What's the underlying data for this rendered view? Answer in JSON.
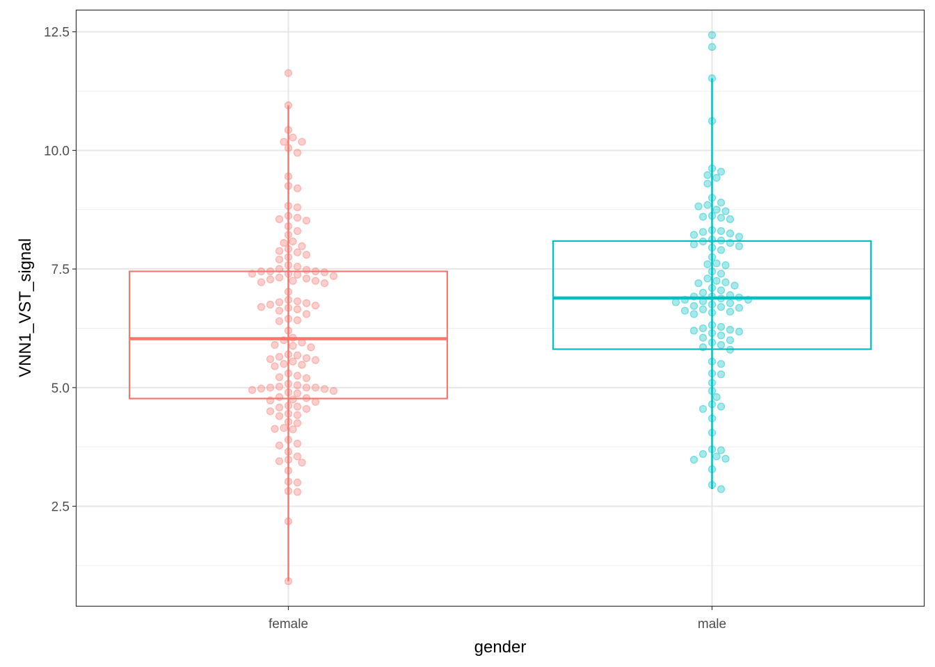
{
  "chart_data": {
    "type": "box",
    "xlabel": "gender",
    "ylabel": "VNN1_VST_signal",
    "categories": [
      "female",
      "male"
    ],
    "ylim": [
      0.4,
      12.95
    ],
    "yticks": [
      2.5,
      5.0,
      7.5,
      10.0,
      12.5
    ],
    "ytick_labels": [
      "2.5",
      "5.0",
      "7.5",
      "10.0",
      "12.5"
    ],
    "grid": true,
    "legend": "none",
    "colors": {
      "female": "#F8766D",
      "male": "#00BFC4"
    },
    "series": [
      {
        "category": "female",
        "box": {
          "lower_whisker": 0.92,
          "q1": 4.77,
          "median": 6.03,
          "q3": 7.45,
          "upper_whisker": 10.95
        },
        "points": [
          11.63,
          10.95,
          10.43,
          10.27,
          10.18,
          10.18,
          10.05,
          9.95,
          9.45,
          9.25,
          9.2,
          8.83,
          8.8,
          8.62,
          8.58,
          8.55,
          8.52,
          8.4,
          8.3,
          8.22,
          8.08,
          8.05,
          7.98,
          7.92,
          7.88,
          7.85,
          7.8,
          7.75,
          7.7,
          7.58,
          7.55,
          7.5,
          7.48,
          7.45,
          7.45,
          7.45,
          7.43,
          7.4,
          7.4,
          7.38,
          7.35,
          7.32,
          7.3,
          7.28,
          7.25,
          7.25,
          7.22,
          7.2,
          7.02,
          6.85,
          6.82,
          6.8,
          6.78,
          6.75,
          6.73,
          6.7,
          6.68,
          6.65,
          6.62,
          6.55,
          6.45,
          6.42,
          6.4,
          6.2,
          6.05,
          6.0,
          5.95,
          5.9,
          5.88,
          5.85,
          5.7,
          5.68,
          5.65,
          5.62,
          5.6,
          5.58,
          5.55,
          5.5,
          5.48,
          5.45,
          5.3,
          5.25,
          5.22,
          5.2,
          5.08,
          5.05,
          5.02,
          5.0,
          5.0,
          5.0,
          4.98,
          4.97,
          4.95,
          4.93,
          4.9,
          4.88,
          4.8,
          4.78,
          4.75,
          4.73,
          4.7,
          4.62,
          4.6,
          4.58,
          4.55,
          4.5,
          4.45,
          4.42,
          4.4,
          4.28,
          4.25,
          4.15,
          4.13,
          4.12,
          3.9,
          3.82,
          3.78,
          3.65,
          3.55,
          3.48,
          3.45,
          3.42,
          3.25,
          3.02,
          3.0,
          2.82,
          2.8,
          2.18,
          0.92
        ]
      },
      {
        "category": "male",
        "box": {
          "lower_whisker": 2.86,
          "q1": 5.81,
          "median": 6.89,
          "q3": 8.09,
          "upper_whisker": 11.52
        },
        "points": [
          12.43,
          12.18,
          11.52,
          10.62,
          9.62,
          9.55,
          9.48,
          9.42,
          9.3,
          9.0,
          8.9,
          8.85,
          8.82,
          8.75,
          8.72,
          8.62,
          8.6,
          8.58,
          8.55,
          8.32,
          8.3,
          8.28,
          8.25,
          8.22,
          8.18,
          8.12,
          8.1,
          8.08,
          8.05,
          8.02,
          7.98,
          7.95,
          7.9,
          7.75,
          7.62,
          7.6,
          7.58,
          7.45,
          7.4,
          7.3,
          7.25,
          7.22,
          7.2,
          7.15,
          7.1,
          7.05,
          7.0,
          6.95,
          6.92,
          6.92,
          6.9,
          6.88,
          6.85,
          6.85,
          6.82,
          6.8,
          6.78,
          6.75,
          6.72,
          6.7,
          6.68,
          6.65,
          6.62,
          6.6,
          6.58,
          6.55,
          6.32,
          6.28,
          6.25,
          6.22,
          6.2,
          6.18,
          6.15,
          6.1,
          6.05,
          6.0,
          5.95,
          5.9,
          5.85,
          5.8,
          5.55,
          5.5,
          5.3,
          5.28,
          5.1,
          4.93,
          4.8,
          4.65,
          4.6,
          4.55,
          4.35,
          4.05,
          3.7,
          3.68,
          3.6,
          3.55,
          3.5,
          3.48,
          3.28,
          2.95,
          2.86
        ]
      }
    ]
  }
}
